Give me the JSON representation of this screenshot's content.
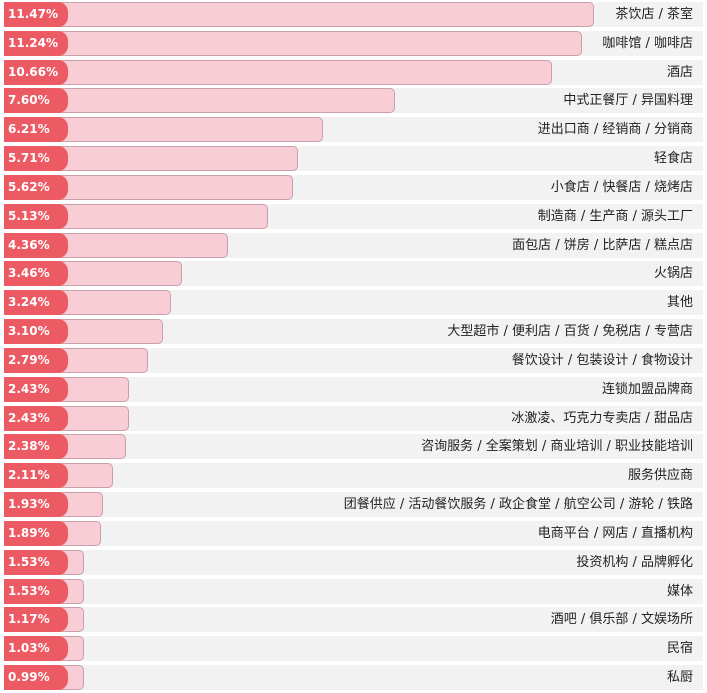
{
  "chart_data": {
    "type": "bar",
    "orientation": "horizontal",
    "title": "",
    "xlabel": "",
    "ylabel": "",
    "xlim": [
      0,
      11.47
    ],
    "grid": false,
    "legend": "none",
    "colors": {
      "bar": "#f9cdd6",
      "badge": "#ec5b63",
      "track": "#f2f2f2"
    },
    "categories": [
      "茶饮店 / 茶室",
      "咖啡馆 / 咖啡店",
      "酒店",
      "中式正餐厅 / 异国料理",
      "进出口商 / 经销商 / 分销商",
      "轻食店",
      "小食店 / 快餐店 / 烧烤店",
      "制造商 / 生产商 / 源头工厂",
      "面包店 / 饼房 / 比萨店 / 糕点店",
      "火锅店",
      "其他",
      "大型超市 / 便利店 / 百货 / 免税店 / 专营店",
      "餐饮设计 / 包装设计 / 食物设计",
      "连锁加盟品牌商",
      "冰激凌、巧克力专卖店 / 甜品店",
      "咨询服务 / 全案策划 / 商业培训 / 职业技能培训",
      "服务供应商",
      "团餐供应 / 活动餐饮服务 / 政企食堂 / 航空公司 / 游轮 / 铁路",
      "电商平台 / 网店 / 直播机构",
      "投资机构 / 品牌孵化",
      "媒体",
      "酒吧 / 俱乐部 / 文娱场所",
      "民宿",
      "私厨"
    ],
    "values": [
      11.47,
      11.24,
      10.66,
      7.6,
      6.21,
      5.71,
      5.62,
      5.13,
      4.36,
      3.46,
      3.24,
      3.1,
      2.79,
      2.43,
      2.43,
      2.38,
      2.11,
      1.93,
      1.89,
      1.53,
      1.53,
      1.17,
      1.03,
      0.99
    ],
    "labels": [
      "11.47%",
      "11.24%",
      "10.66%",
      "7.60%",
      "6.21%",
      "5.71%",
      "5.62%",
      "5.13%",
      "4.36%",
      "3.46%",
      "3.24%",
      "3.10%",
      "2.79%",
      "2.43%",
      "2.43%",
      "2.38%",
      "2.11%",
      "1.93%",
      "1.89%",
      "1.53%",
      "1.53%",
      "1.17%",
      "1.03%",
      "0.99%"
    ]
  }
}
